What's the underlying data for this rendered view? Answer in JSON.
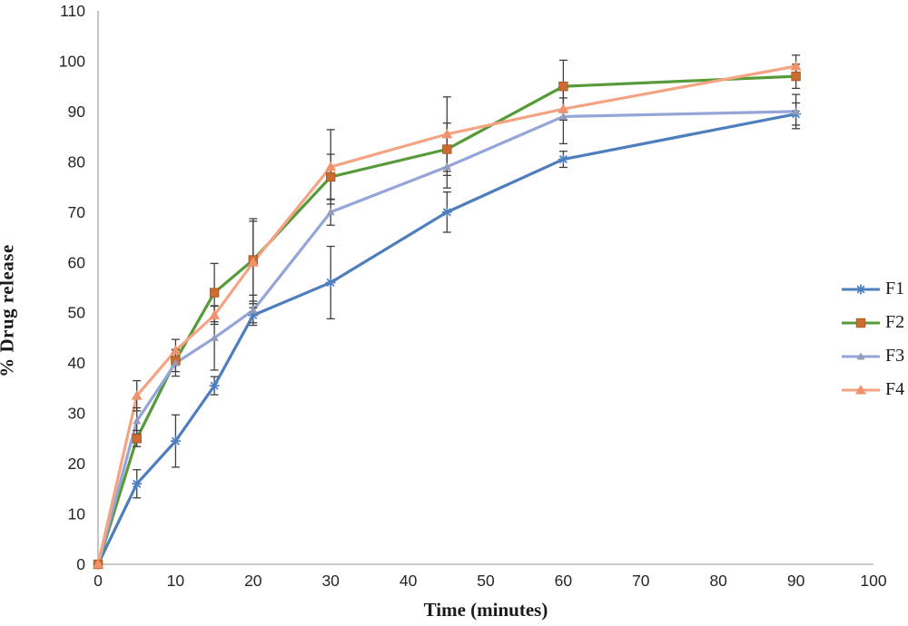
{
  "figure": {
    "background": "#ffffff",
    "axis_color": "#a6a6a6",
    "tick_label_color": "#262626",
    "error_bar_color": "#3f3f3f"
  },
  "chart_data": {
    "type": "line",
    "title": "",
    "xlabel": "Time (minutes)",
    "ylabel": "% Drug release",
    "xlim": [
      0,
      100
    ],
    "ylim": [
      0,
      110
    ],
    "xticks": [
      0,
      10,
      20,
      30,
      40,
      50,
      60,
      70,
      80,
      90,
      100
    ],
    "yticks": [
      0,
      10,
      20,
      30,
      40,
      50,
      60,
      70,
      80,
      90,
      100,
      110
    ],
    "grid": false,
    "error_bars": true,
    "legend_position": "right",
    "x": [
      0,
      5,
      10,
      15,
      20,
      30,
      45,
      60,
      90
    ],
    "series": [
      {
        "name": "F1",
        "color": "#4E7EBD",
        "marker": "asterisk",
        "marker_color": "#4E7EBD",
        "values": [
          0,
          16,
          24.5,
          35.5,
          49.5,
          56,
          70,
          80.5,
          89.5
        ],
        "errors": [
          0,
          2.8,
          5.2,
          1.8,
          1.5,
          7.2,
          4,
          1.6,
          2.2
        ]
      },
      {
        "name": "F2",
        "color": "#579A39",
        "marker": "square",
        "marker_color": "#CB6D32",
        "values": [
          0,
          25,
          40.5,
          54,
          60.5,
          77,
          82.5,
          95,
          97
        ],
        "errors": [
          0,
          1.6,
          2.2,
          5.8,
          8.2,
          4.5,
          5.2,
          5.2,
          2.4
        ]
      },
      {
        "name": "F3",
        "color": "#96A5D9",
        "marker": "triangle-small",
        "marker_color": "#939CB5",
        "values": [
          0,
          28.5,
          40,
          45,
          50.5,
          70,
          79,
          89,
          90
        ],
        "errors": [
          0,
          2.6,
          2.6,
          6.4,
          3,
          2.6,
          4.2,
          5.4,
          3.4
        ]
      },
      {
        "name": "F4",
        "color": "#F5A483",
        "marker": "triangle",
        "marker_color": "#F0926B",
        "values": [
          0,
          33.5,
          42.5,
          49.5,
          60,
          79,
          85.5,
          90.5,
          99
        ],
        "errors": [
          0,
          3,
          2.2,
          1.8,
          8.2,
          7.4,
          7.4,
          2.2,
          2.2
        ]
      }
    ]
  }
}
